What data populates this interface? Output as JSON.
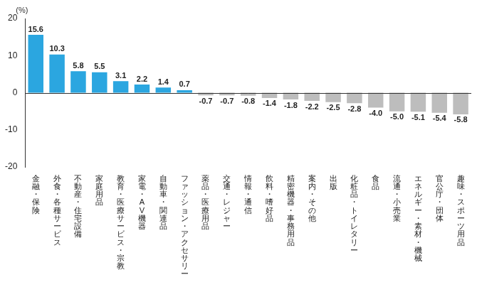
{
  "chart_data": {
    "type": "bar",
    "ylabel": "(%)",
    "categories": [
      "金融・保険",
      "外食・各種サービス",
      "不動産・住宅設備",
      "家庭用品",
      "教育・医療サービス・宗教",
      "家電・AV機器",
      "自動車・関連品",
      "ファッション・アクセサリー",
      "薬品・医療用品",
      "交通・レジャー",
      "情報・通信",
      "飲料・嗜好品",
      "精密機器・事務用品",
      "案内・その他",
      "出版",
      "化粧品・トイレタリー",
      "食品",
      "流通・小売業",
      "エネルギー・素材・機械",
      "官公庁・団体",
      "趣味・スポーツ用品"
    ],
    "values": [
      15.6,
      10.3,
      5.8,
      5.5,
      3.1,
      2.2,
      1.4,
      0.7,
      -0.7,
      -0.7,
      -0.8,
      -1.4,
      -1.8,
      -2.2,
      -2.5,
      -2.8,
      -4.0,
      -5.0,
      -5.1,
      -5.4,
      -5.8
    ],
    "value_labels": [
      "15.6",
      "10.3",
      "5.8",
      "5.5",
      "3.1",
      "2.2",
      "1.4",
      "0.7",
      "-0.7",
      "-0.7",
      "-0.8",
      "-1.4",
      "-1.8",
      "-2.2",
      "-2.5",
      "-2.8",
      "-4.0",
      "-5.0",
      "-5.1",
      "-5.4",
      "-5.8"
    ],
    "colors": [
      "#2ba6e0",
      "#2ba6e0",
      "#2ba6e0",
      "#2ba6e0",
      "#2ba6e0",
      "#2ba6e0",
      "#2ba6e0",
      "#2ba6e0",
      "#bdbdbd",
      "#bdbdbd",
      "#bdbdbd",
      "#bdbdbd",
      "#bdbdbd",
      "#bdbdbd",
      "#bdbdbd",
      "#bdbdbd",
      "#bdbdbd",
      "#bdbdbd",
      "#bdbdbd",
      "#bdbdbd",
      "#bdbdbd"
    ],
    "ylim": [
      -20,
      20
    ],
    "yticks": [
      -20,
      -10,
      0,
      10,
      20
    ],
    "grid": false,
    "data_labels": true
  }
}
